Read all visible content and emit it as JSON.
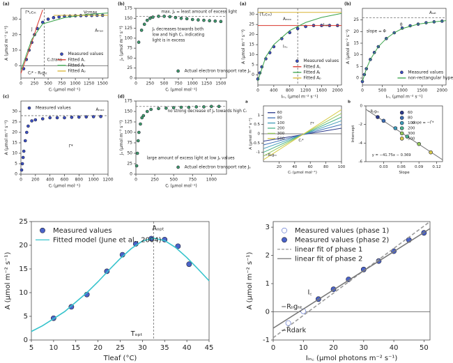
{
  "chart_data": [
    {
      "type": "scatter",
      "label": "(a)",
      "x_label": "Cᵢ (µmol mol⁻¹)",
      "y_label": "A (µmol m⁻² s⁻¹)",
      "xlim": [
        0,
        1600
      ],
      "xticks": [
        0,
        250,
        500,
        750,
        1000,
        1250,
        1500
      ],
      "ylim": [
        -8,
        37
      ],
      "yticks": [
        0,
        10,
        20,
        30
      ],
      "legend": "lower right",
      "hlines": [
        0
      ],
      "vlines": [
        430
      ],
      "annotations": [
        "Γ*ₚcᵣᵢₜ",
        "Vcmax",
        "J",
        "Cᵢ,trans",
        "Cᵢ* – Rₗᵢgₕₜ",
        "Aₘₐₓ"
      ],
      "series": [
        {
          "name": "Measured values",
          "color": "#3b4fc4",
          "style": "markers",
          "x": [
            50,
            100,
            150,
            200,
            250,
            300,
            400,
            500,
            600,
            700,
            800,
            900,
            1000,
            1100,
            1200,
            1300,
            1400,
            1500
          ],
          "values": [
            -2,
            4,
            10,
            15,
            20,
            24,
            28,
            30,
            31,
            31.5,
            32,
            32,
            32.2,
            32.3,
            32.4,
            32.4,
            32.5,
            32.5
          ]
        },
        {
          "name": "Fitted A꜀",
          "color": "#d9352b",
          "style": "line",
          "x": [
            0,
            100,
            200,
            300,
            400
          ],
          "values": [
            -5,
            5,
            15,
            26,
            36
          ]
        },
        {
          "name": "Fitted Aⱼ",
          "color": "#3aa34a",
          "style": "line",
          "x": [
            0,
            200,
            400,
            800,
            1200,
            1600
          ],
          "values": [
            -3,
            17,
            27,
            31,
            33,
            34
          ]
        },
        {
          "name": "Fitted Aₚ",
          "color": "#d8b430",
          "style": "line",
          "x": [
            600,
            1000,
            1600
          ],
          "values": [
            32.5,
            32.5,
            32.5
          ]
        }
      ]
    },
    {
      "type": "scatter",
      "label": "(b)",
      "x_label": "Cᵢ (µmol mol⁻¹)",
      "y_label": "Jₐ (µmol m⁻² s⁻¹)",
      "xlim": [
        0,
        1600
      ],
      "xticks": [
        0,
        250,
        500,
        750,
        1000,
        1250,
        1500
      ],
      "ylim": [
        0,
        175
      ],
      "yticks": [
        0,
        25,
        50,
        75,
        100,
        125,
        150,
        175
      ],
      "legend": "lower right",
      "hlines": [
        155
      ],
      "annotations": [
        "max. Jₐ = least amount of excess light",
        "Jₐ decreases towards both",
        "low and high Cᵢ, indicating",
        "light is in excess"
      ],
      "series": [
        {
          "name": "Actual electron transport rate Jₐ",
          "color": "#3f9c6a",
          "style": "markers",
          "x": [
            50,
            100,
            150,
            200,
            250,
            300,
            400,
            500,
            600,
            700,
            800,
            900,
            1000,
            1100,
            1200,
            1300,
            1400,
            1500
          ],
          "values": [
            90,
            120,
            135,
            145,
            150,
            153,
            155,
            155,
            154,
            152,
            150,
            149,
            147,
            146,
            145,
            144,
            143,
            142
          ]
        }
      ]
    },
    {
      "type": "scatter",
      "label": "(c)",
      "x_label": "Cᵢ (µmol mol⁻¹)",
      "y_label": "A (µmol m⁻² s⁻¹)",
      "xlim": [
        0,
        1200
      ],
      "xticks": [
        0,
        200,
        400,
        600,
        800,
        1000,
        1200
      ],
      "ylim": [
        0,
        35
      ],
      "yticks": [
        0,
        5,
        10,
        15,
        20,
        25,
        30
      ],
      "legend": "upper left",
      "hlines": [
        28
      ],
      "annotations": [
        "Aₘₐₓ",
        "Γ*"
      ],
      "series": [
        {
          "name": "Measured values",
          "color": "#3b4fc4",
          "style": "markers",
          "x": [
            10,
            20,
            30,
            40,
            60,
            80,
            100,
            150,
            200,
            300,
            400,
            500,
            600,
            700,
            800,
            900,
            1000,
            1100
          ],
          "values": [
            2,
            5,
            8,
            11,
            16,
            20,
            23,
            25.5,
            26,
            26.5,
            27,
            27,
            27,
            27.2,
            27.3,
            27.4,
            27.5,
            27.6
          ]
        }
      ]
    },
    {
      "type": "scatter",
      "label": "(d)",
      "x_label": "Cᵢ (µmol mol⁻¹)",
      "y_label": "Jₐ (µmol m⁻² s⁻¹)",
      "xlim": [
        0,
        1200
      ],
      "xticks": [
        0,
        250,
        500,
        750,
        1000
      ],
      "ylim": [
        0,
        175
      ],
      "yticks": [
        0,
        25,
        50,
        75,
        100,
        125,
        150,
        175
      ],
      "legend": "lower right",
      "hlines": [
        162
      ],
      "annotations": [
        "no strong decrease of Jₐ towards high Cᵢ",
        "large amount of excess light at low Jₐ values"
      ],
      "series": [
        {
          "name": "Actual electron transport rate Jₐ",
          "color": "#3f9c6a",
          "style": "markers",
          "x": [
            10,
            20,
            30,
            40,
            60,
            80,
            100,
            150,
            200,
            300,
            400,
            500,
            600,
            700,
            800,
            900,
            1000,
            1100
          ],
          "values": [
            20,
            50,
            80,
            100,
            120,
            135,
            140,
            150,
            155,
            157,
            158,
            159,
            160,
            160,
            161,
            161,
            162,
            162
          ]
        }
      ]
    },
    {
      "type": "scatter",
      "label": "(a)",
      "x_label": "Iᵢₙ꜀ (µmol m⁻² s⁻¹)",
      "y_label": "A (µmol m⁻² s⁻¹)",
      "xlim": [
        0,
        2100
      ],
      "xticks": [
        0,
        400,
        800,
        1200,
        1600,
        2000
      ],
      "ylim": [
        -5,
        33
      ],
      "yticks": [
        0,
        5,
        10,
        15,
        20,
        25,
        30
      ],
      "legend": "lower right",
      "vlines": [
        1000
      ],
      "annotations": [
        "(Tₚcᵣᵢₜ)",
        "Aₘₐₓ",
        "Iᵢₙ꜀",
        "Iᵣₑₜ"
      ],
      "series": [
        {
          "name": "Measured values",
          "color": "#3b4fc4",
          "style": "markers",
          "x": [
            0,
            50,
            100,
            200,
            300,
            400,
            600,
            800,
            1000,
            1200,
            1400,
            1600,
            1800,
            2000
          ],
          "values": [
            -2,
            1,
            4,
            8,
            11,
            14,
            18,
            21,
            23,
            24,
            24.5,
            24.5,
            24.5,
            24.5
          ]
        },
        {
          "name": "Fitted A꜀",
          "color": "#d9352b",
          "style": "line",
          "x": [
            0,
            2100
          ],
          "values": [
            24.5,
            24.5
          ]
        },
        {
          "name": "Fitted Aⱼ",
          "color": "#3aa34a",
          "style": "line",
          "x": [
            0,
            200,
            400,
            800,
            1200,
            1600,
            2100
          ],
          "values": [
            -3,
            9,
            15,
            22,
            26,
            28.5,
            30.5
          ]
        },
        {
          "name": "Fitted Aₚ",
          "color": "#d8b430",
          "style": "line",
          "x": [
            0,
            2100
          ],
          "values": [
            31,
            31
          ]
        }
      ]
    },
    {
      "type": "scatter",
      "label": "(b)",
      "x_label": "Iᵢₙ꜀ (µmol m⁻² s⁻¹)",
      "y_label": "A (µmol m⁻² s⁻¹)",
      "xlim": [
        0,
        2100
      ],
      "xticks": [
        0,
        500,
        1000,
        1500,
        2000
      ],
      "ylim": [
        -3,
        30
      ],
      "yticks": [
        0,
        5,
        10,
        15,
        20,
        25
      ],
      "legend": "lower right",
      "hlines": [
        26
      ],
      "annotations": [
        "Aₛₐₜ",
        "slope = Φ",
        "θ"
      ],
      "series": [
        {
          "name": "Measured values",
          "color": "#3b4fc4",
          "style": "markers",
          "x": [
            0,
            50,
            100,
            200,
            300,
            400,
            600,
            800,
            1000,
            1200,
            1400,
            1600,
            1800,
            2000
          ],
          "values": [
            -1.5,
            1.5,
            4,
            8,
            11,
            13.5,
            17,
            19.5,
            21.5,
            22.5,
            23.2,
            23.8,
            24.2,
            24.5
          ]
        },
        {
          "name": "non-rectangular hyperbolic model",
          "color": "#3aa34a",
          "style": "line",
          "x": [
            0,
            100,
            200,
            400,
            600,
            800,
            1000,
            1400,
            1800,
            2100
          ],
          "values": [
            -1.5,
            4,
            8,
            13.5,
            17,
            19.5,
            21.3,
            23.2,
            24.2,
            24.7
          ]
        }
      ]
    },
    {
      "type": "line",
      "label": "a",
      "x_label": "Cᵢ (µmol mol⁻¹)",
      "y_label": "A (µmol m⁻² s⁻¹)",
      "xlim": [
        0,
        100
      ],
      "xticks": [
        20,
        40,
        60,
        80,
        100
      ],
      "ylim": [
        -1.5,
        1.5
      ],
      "yticks": [
        -1,
        -0.5,
        0,
        0.5,
        1
      ],
      "legend": "upper left",
      "hlines": [
        0
      ],
      "annotations": [
        "Γ*",
        "Cᵢ*",
        "−Rₗᵢgₕₜ"
      ],
      "series": [
        {
          "name": "60",
          "color": "#2b3a8c",
          "style": "line",
          "x": [
            0,
            100
          ],
          "values": [
            -0.4,
            0.3
          ]
        },
        {
          "name": "80",
          "color": "#3d6fb5",
          "style": "line",
          "x": [
            0,
            100
          ],
          "values": [
            -0.6,
            0.5
          ]
        },
        {
          "name": "100",
          "color": "#3e9bb8",
          "style": "line",
          "x": [
            0,
            100
          ],
          "values": [
            -0.8,
            0.7
          ]
        },
        {
          "name": "200",
          "color": "#4cb38a",
          "style": "line",
          "x": [
            0,
            100
          ],
          "values": [
            -1.0,
            0.9
          ]
        },
        {
          "name": "300",
          "color": "#95c95a",
          "style": "line",
          "x": [
            0,
            100
          ],
          "values": [
            -1.2,
            1.1
          ]
        },
        {
          "name": "500",
          "color": "#d8cc4a",
          "style": "line",
          "x": [
            0,
            100
          ],
          "values": [
            -1.4,
            1.3
          ]
        }
      ]
    },
    {
      "type": "scatter",
      "label": "b",
      "x_label": "Slope",
      "y_label": "Intercept",
      "xlim": [
        0,
        0.13
      ],
      "xticks": [
        0.03,
        0.06,
        0.09,
        0.12
      ],
      "ylim": [
        -6,
        0
      ],
      "yticks": [
        -6,
        -4,
        -2,
        0
      ],
      "legend": "upper right",
      "annotations": [
        "−Rₗᵢgₕₜ",
        "slope = −Γ*",
        "y = −41.75x − 0.369"
      ],
      "series": [
        {
          "color": "#777777",
          "style": "line",
          "x": [
            0,
            0.13
          ],
          "values": [
            -0.37,
            -5.8
          ]
        },
        {
          "name": "60",
          "color": "#2b3a8c",
          "style": "markers",
          "x": [
            0.02
          ],
          "values": [
            -1.2
          ]
        },
        {
          "name": "80",
          "color": "#3d6fb5",
          "style": "markers",
          "x": [
            0.03
          ],
          "values": [
            -1.6
          ]
        },
        {
          "name": "100",
          "color": "#3e9bb8",
          "style": "markers",
          "x": [
            0.05
          ],
          "values": [
            -2.4
          ]
        },
        {
          "name": "200",
          "color": "#4cb38a",
          "style": "markers",
          "x": [
            0.07
          ],
          "values": [
            -3.3
          ]
        },
        {
          "name": "300",
          "color": "#95c95a",
          "style": "markers",
          "x": [
            0.09
          ],
          "values": [
            -4.1
          ]
        },
        {
          "name": "500",
          "color": "#d8cc4a",
          "style": "markers",
          "x": [
            0.11
          ],
          "values": [
            -5
          ]
        }
      ]
    },
    {
      "type": "scatter",
      "x_label": "Tleaf (°C)",
      "y_label": "A (µmol m⁻² s⁻¹)",
      "xlim": [
        5,
        45
      ],
      "xticks": [
        5,
        10,
        15,
        20,
        25,
        30,
        35,
        40,
        45
      ],
      "ylim": [
        0,
        25
      ],
      "yticks": [
        0,
        5,
        10,
        15,
        20,
        25
      ],
      "legend": "upper left",
      "vlines": [
        32.5
      ],
      "annotations": [
        "Aₒₚₜ",
        "Tₒₚₜ"
      ],
      "series": [
        {
          "name": "Measured values",
          "color": "#4a63c9",
          "style": "markers",
          "x": [
            10,
            14,
            17.5,
            22,
            25.5,
            28.5,
            32,
            35,
            38,
            40.5
          ],
          "values": [
            4.6,
            7,
            9.6,
            14.5,
            18,
            20.3,
            21.4,
            21.2,
            19.8,
            16
          ]
        },
        {
          "name": "Fitted model (June et al., 2004)",
          "color": "#35c3cc",
          "style": "line",
          "x": [
            5,
            7.5,
            10,
            12.5,
            15,
            17.5,
            20,
            22.5,
            25,
            27.5,
            30,
            32.5,
            35,
            37.5,
            40,
            42.5,
            45
          ],
          "values": [
            1.8,
            3,
            4.5,
            6,
            8,
            10,
            12.3,
            14.8,
            17.2,
            19.3,
            20.9,
            21.5,
            21,
            19.5,
            17.4,
            15,
            12.5
          ]
        }
      ]
    },
    {
      "type": "scatter",
      "x_label": "Iᵢₙ꜀ (µmol photons m⁻² s⁻¹)",
      "y_label": "A (µmol m⁻² s⁻¹)",
      "xlim": [
        0,
        52
      ],
      "xticks": [
        0,
        10,
        20,
        30,
        40,
        50
      ],
      "ylim": [
        -1,
        3.2
      ],
      "yticks": [
        -1,
        0,
        1,
        2,
        3
      ],
      "legend": "upper left",
      "hlines": [
        0
      ],
      "vlines": [
        0
      ],
      "annotations": [
        "−Rₗᵢgₕₜ",
        "−Rdark",
        "I꜀"
      ],
      "series": [
        {
          "name": "Measured values (phase 1)",
          "color": "#4a63c9",
          "style": "open-markers",
          "x": [
            5,
            10
          ],
          "values": [
            -0.4,
            0.02
          ]
        },
        {
          "name": "Measured values (phase 2)",
          "color": "#4a63c9",
          "style": "markers",
          "x": [
            15,
            20,
            25,
            30,
            35,
            40,
            45,
            50
          ],
          "values": [
            0.45,
            0.8,
            1.15,
            1.5,
            1.8,
            2.15,
            2.55,
            2.8
          ]
        },
        {
          "name": "linear fit of phase 1",
          "color": "#9a9a9a",
          "style": "dashed-line",
          "x": [
            0,
            52
          ],
          "values": [
            -0.92,
            3.2
          ]
        },
        {
          "name": "linear fit of phase 2",
          "color": "#777777",
          "style": "line",
          "x": [
            0,
            52
          ],
          "values": [
            -0.58,
            2.95
          ]
        }
      ]
    }
  ]
}
